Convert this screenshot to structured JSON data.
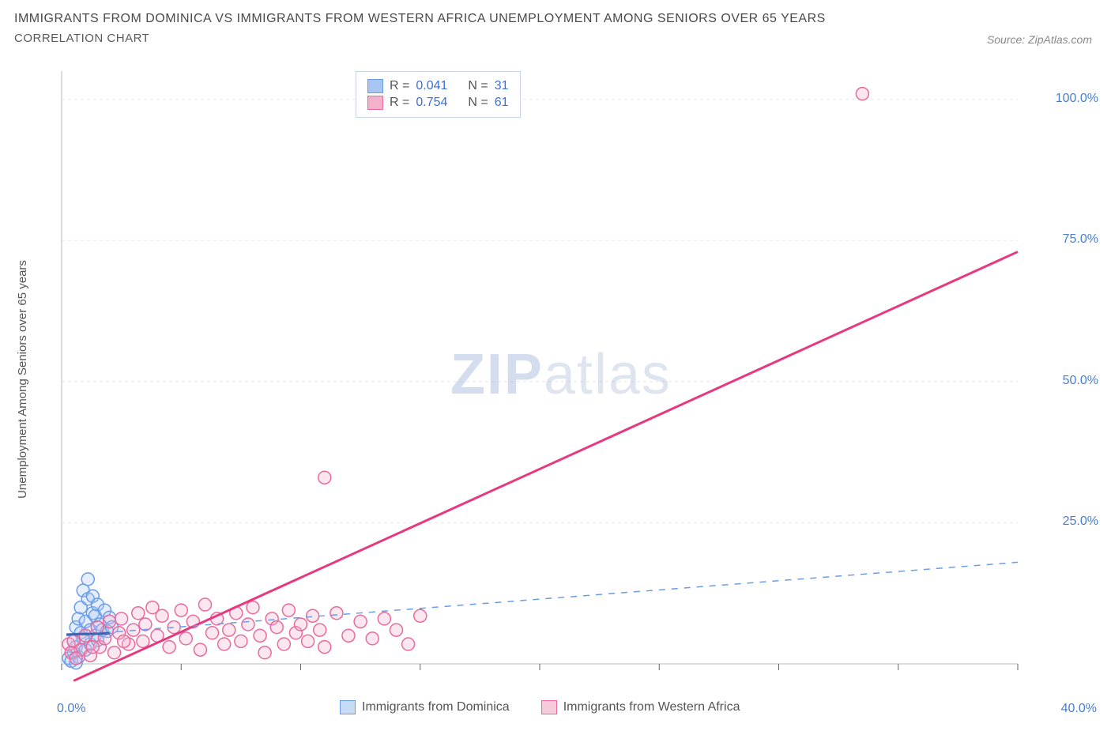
{
  "title": "IMMIGRANTS FROM DOMINICA VS IMMIGRANTS FROM WESTERN AFRICA UNEMPLOYMENT AMONG SENIORS OVER 65 YEARS",
  "subtitle": "CORRELATION CHART",
  "source": "Source: ZipAtlas.com",
  "watermark_bold": "ZIP",
  "watermark_light": "atlas",
  "y_axis_label": "Unemployment Among Seniors over 65 years",
  "chart": {
    "type": "scatter",
    "background_color": "#ffffff",
    "grid_color": "#e8e8e8",
    "axis_color": "#d0d0d0",
    "tick_color": "#666",
    "label_color": "#4a7ec9",
    "xlim": [
      0,
      40
    ],
    "ylim": [
      0,
      105
    ],
    "x_ticks": [
      0,
      5,
      10,
      15,
      20,
      25,
      30,
      35,
      40
    ],
    "x_tick_label_left": "0.0%",
    "x_tick_label_right": "40.0%",
    "y_ticks_major": [
      25,
      50,
      75,
      100
    ],
    "y_tick_labels": [
      "25.0%",
      "50.0%",
      "75.0%",
      "100.0%"
    ],
    "marker_radius": 8,
    "marker_border_width": 1.5,
    "fill_opacity": 0.3,
    "series": [
      {
        "name": "Immigrants from Dominica",
        "color": "#6a9de8",
        "fill": "#a9c6f2",
        "R": "0.041",
        "N": "31",
        "regression": {
          "type": "dashed-then-solid",
          "dash_color": "#6a9de8",
          "solid_color": "#3a66b5",
          "x1": 0.2,
          "y1": 5.0,
          "x2": 40,
          "y2": 18.0,
          "solid_x1": 0.2,
          "solid_y1": 5.2,
          "solid_x2": 2.0,
          "solid_y2": 5.4
        },
        "points": [
          [
            0.3,
            1.0
          ],
          [
            0.4,
            0.5
          ],
          [
            0.5,
            4.0
          ],
          [
            0.5,
            2.0
          ],
          [
            0.6,
            6.5
          ],
          [
            0.6,
            3.0
          ],
          [
            0.7,
            1.2
          ],
          [
            0.7,
            8.0
          ],
          [
            0.8,
            5.5
          ],
          [
            0.8,
            10.0
          ],
          [
            0.9,
            4.5
          ],
          [
            0.9,
            13.0
          ],
          [
            1.0,
            2.5
          ],
          [
            1.0,
            7.5
          ],
          [
            1.1,
            15.0
          ],
          [
            1.1,
            11.5
          ],
          [
            1.2,
            6.0
          ],
          [
            1.2,
            3.5
          ],
          [
            1.3,
            9.0
          ],
          [
            1.3,
            12.0
          ],
          [
            1.4,
            5.0
          ],
          [
            1.4,
            8.5
          ],
          [
            1.5,
            10.5
          ],
          [
            1.5,
            4.2
          ],
          [
            1.6,
            7.0
          ],
          [
            1.7,
            6.0
          ],
          [
            1.8,
            9.5
          ],
          [
            1.9,
            5.8
          ],
          [
            2.0,
            8.2
          ],
          [
            2.1,
            6.5
          ],
          [
            0.6,
            0.2
          ]
        ]
      },
      {
        "name": "Immigrants from Western Africa",
        "color": "#e86a9d",
        "fill": "#f5b0cc",
        "R": "0.754",
        "N": "61",
        "regression": {
          "type": "solid",
          "color": "#e63980",
          "x1": 0.5,
          "y1": -3.0,
          "x2": 40,
          "y2": 73.0
        },
        "points": [
          [
            0.3,
            3.5
          ],
          [
            0.5,
            4.0
          ],
          [
            0.8,
            2.5
          ],
          [
            1.0,
            5.0
          ],
          [
            1.2,
            1.5
          ],
          [
            1.5,
            6.5
          ],
          [
            1.6,
            3.0
          ],
          [
            1.8,
            4.5
          ],
          [
            2.0,
            7.5
          ],
          [
            2.2,
            2.0
          ],
          [
            2.4,
            5.5
          ],
          [
            2.5,
            8.0
          ],
          [
            2.8,
            3.5
          ],
          [
            3.0,
            6.0
          ],
          [
            3.2,
            9.0
          ],
          [
            3.4,
            4.0
          ],
          [
            3.5,
            7.0
          ],
          [
            3.8,
            10.0
          ],
          [
            4.0,
            5.0
          ],
          [
            4.2,
            8.5
          ],
          [
            4.5,
            3.0
          ],
          [
            4.7,
            6.5
          ],
          [
            5.0,
            9.5
          ],
          [
            5.2,
            4.5
          ],
          [
            5.5,
            7.5
          ],
          [
            5.8,
            2.5
          ],
          [
            6.0,
            10.5
          ],
          [
            6.3,
            5.5
          ],
          [
            6.5,
            8.0
          ],
          [
            6.8,
            3.5
          ],
          [
            7.0,
            6.0
          ],
          [
            7.3,
            9.0
          ],
          [
            7.5,
            4.0
          ],
          [
            7.8,
            7.0
          ],
          [
            8.0,
            10.0
          ],
          [
            8.3,
            5.0
          ],
          [
            8.5,
            2.0
          ],
          [
            8.8,
            8.0
          ],
          [
            9.0,
            6.5
          ],
          [
            9.3,
            3.5
          ],
          [
            9.5,
            9.5
          ],
          [
            9.8,
            5.5
          ],
          [
            10.0,
            7.0
          ],
          [
            10.3,
            4.0
          ],
          [
            10.5,
            8.5
          ],
          [
            10.8,
            6.0
          ],
          [
            11.0,
            3.0
          ],
          [
            11.5,
            9.0
          ],
          [
            12.0,
            5.0
          ],
          [
            12.5,
            7.5
          ],
          [
            13.0,
            4.5
          ],
          [
            13.5,
            8.0
          ],
          [
            14.0,
            6.0
          ],
          [
            14.5,
            3.5
          ],
          [
            11.0,
            33.0
          ],
          [
            15.0,
            8.5
          ],
          [
            33.5,
            101.0
          ],
          [
            0.4,
            2.0
          ],
          [
            0.6,
            1.0
          ],
          [
            1.3,
            3.0
          ],
          [
            2.6,
            4.0
          ]
        ]
      }
    ]
  },
  "legend_bottom": {
    "items": [
      {
        "label": "Immigrants from Dominica",
        "color": "#6a9de8",
        "fill": "#c8dbf5"
      },
      {
        "label": "Immigrants from Western Africa",
        "color": "#e86a9d",
        "fill": "#f5cada"
      }
    ]
  }
}
